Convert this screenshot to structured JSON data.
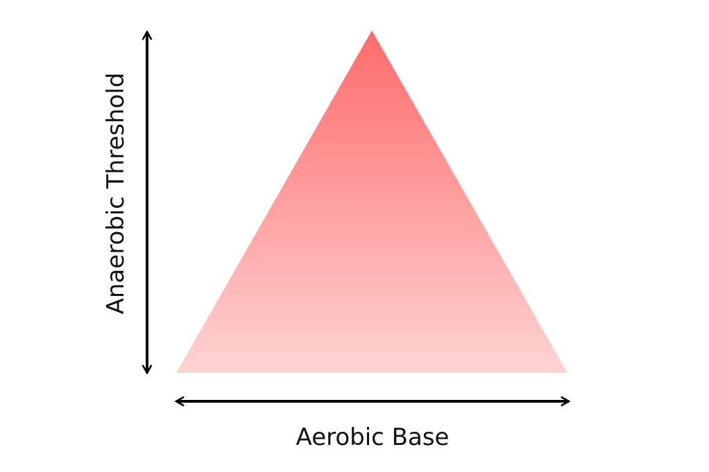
{
  "labels": {
    "vertical": "Anaerobic Threshold",
    "horizontal": "Aerobic Base"
  }
}
